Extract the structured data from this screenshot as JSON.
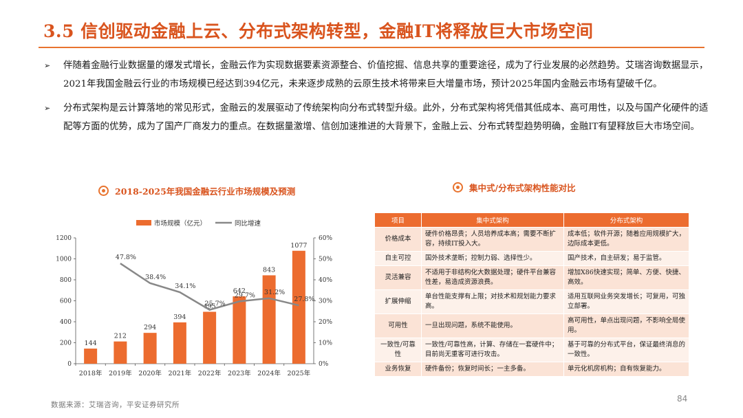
{
  "page": {
    "title": "3.5 信创驱动金融上云、分布式架构转型，金融IT将释放巨大市场空间",
    "page_number": "84",
    "source": "数据来源：艾瑞咨询，平安证券研究所",
    "accent_color": "#e8732e"
  },
  "bullets": [
    "伴随着金融行业数据量的爆发式增长，金融云作为实现数据要素资源整合、价值挖掘、信息共享的重要途径，成为了行业发展的必然趋势。艾瑞咨询数据显示，2021年我国金融云行业的市场规模已经达到394亿元，未来逐步成熟的云原生技术将带来巨大增量市场，预计2025年国内金融云市场有望破千亿。",
    "分布式架构是云计算落地的常见形式，金融云的发展驱动了传统架构向分布式转型升级。此外，分布式架构将凭借其低成本、高可用性，以及与国产化硬件的适配等方面的优势，成为了国产厂商发力的重点。在数据量激增、信创加速推进的大背景下，金融上云、分布式转型趋势明确，金融IT有望释放巨大市场空间。"
  ],
  "chart_section": {
    "title": "2018-2025年我国金融云行业市场规模及预测"
  },
  "chart_data": {
    "type": "bar",
    "categories": [
      "2018年",
      "2019年",
      "2020年",
      "2021年",
      "2022年",
      "2023年",
      "2024年",
      "2025年"
    ],
    "series": [
      {
        "name": "市场规模（亿元）",
        "type": "bar",
        "axis": "left",
        "values": [
          144,
          212,
          294,
          394,
          495,
          642,
          843,
          1077
        ],
        "color": "#ec6c2f"
      },
      {
        "name": "同比增速",
        "type": "line",
        "axis": "right",
        "values": [
          null,
          47.8,
          38.4,
          34.1,
          25.7,
          29.7,
          31.2,
          27.8
        ],
        "color": "#888888"
      }
    ],
    "bar_labels": [
      "144",
      "212",
      "294",
      "394",
      "495",
      "642",
      "843",
      "1077"
    ],
    "line_labels": [
      "",
      "47.8%",
      "38.4%",
      "34.1%",
      "25.7%",
      "29.7%",
      "31.2%",
      "27.8%"
    ],
    "ylim_left": [
      0,
      1200
    ],
    "yticks_left": [
      "0",
      "200",
      "400",
      "600",
      "800",
      "1000",
      "1200"
    ],
    "ylim_right": [
      0,
      60
    ],
    "yticks_right": [
      "0%",
      "10%",
      "20%",
      "30%",
      "40%",
      "50%",
      "60%"
    ],
    "legend_position": "top",
    "grid": false
  },
  "table_section": {
    "title": "集中式/分布式架构性能对比"
  },
  "comparison_table": {
    "headers": [
      "项目",
      "集中式架构",
      "分布式架构"
    ],
    "rows": [
      [
        "价格成本",
        "硬件价格昂贵；人员培养成本高；需要不断扩容，持续IT投入大。",
        "成本低；软件开源；随着应用规模扩大，边际成本更低。"
      ],
      [
        "自主可控",
        "国外技术垄断；控制力弱、选择性少。",
        "国产技术，自主研发；易于监管。"
      ],
      [
        "灵活兼容",
        "不适用于非结构化大数据处理；硬件平台兼容性差，易造成资源浪费。",
        "增加X86快速实现；简单、方便、快捷、高效。"
      ],
      [
        "扩展伸缩",
        "单台性能支撑有上限；对技术和规划能力要求高。",
        "适用互联网业务突发增长；可复用，可独立部署。"
      ],
      [
        "可用性",
        "一旦出现问题，系统不能使用。",
        "高可用性，单点出现问题，不影响全局使用。"
      ],
      [
        "一致性/可靠性",
        "一致性/可靠性高，计算、存储在一套硬件中；目前尚无重客可进行攻击。",
        "基于可靠的分布式平台，保证最终消息的一致性。"
      ],
      [
        "业务恢复",
        "硬件备份；恢复时间长；一主多备。",
        "单元化机房机构；自有恢复能力。"
      ]
    ]
  }
}
